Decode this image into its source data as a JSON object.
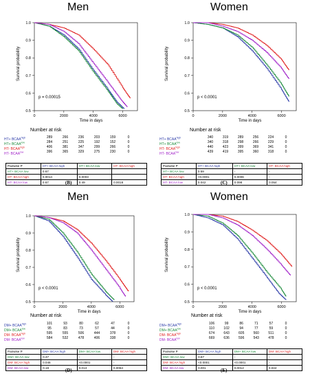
{
  "colors": {
    "blue": "#2b3aa8",
    "green": "#1a8a3a",
    "red": "#e02020",
    "purple": "#a020c8"
  },
  "chart_data": [
    {
      "panel": "B",
      "type": "line",
      "title": "Men",
      "ylabel": "Survival probability",
      "xlabel": "Time in days",
      "xlim": [
        0,
        7000
      ],
      "ylim": [
        0.5,
        1.0
      ],
      "xticks": [
        0,
        2000,
        4000,
        6000
      ],
      "yticks": [
        0.5,
        0.6,
        0.7,
        0.8,
        0.9,
        1.0
      ],
      "xtick_labels": [
        "0",
        "2000",
        "4000",
        "6000"
      ],
      "ytick_labels": [
        "0.5",
        "0.6",
        "0.7",
        "0.8",
        "0.9",
        "1.0"
      ],
      "pvalue": "p = 0.00015",
      "series": [
        {
          "name": "HT+ BCAA high",
          "color": "blue",
          "x": [
            0,
            1000,
            2000,
            3000,
            4000,
            5000,
            5600,
            6100
          ],
          "y": [
            1.0,
            0.98,
            0.93,
            0.85,
            0.73,
            0.62,
            0.55,
            0.51
          ]
        },
        {
          "name": "HT+ BCAA low",
          "color": "green",
          "x": [
            0,
            1000,
            2000,
            3000,
            4000,
            5000,
            5600,
            6000
          ],
          "y": [
            1.0,
            0.98,
            0.92,
            0.84,
            0.72,
            0.61,
            0.54,
            0.51
          ]
        },
        {
          "name": "HT- BCAA high",
          "color": "red",
          "x": [
            0,
            1000,
            2000,
            3000,
            4000,
            5000,
            6000,
            6500
          ],
          "y": [
            1.0,
            0.99,
            0.97,
            0.93,
            0.85,
            0.76,
            0.63,
            0.57
          ]
        },
        {
          "name": "HT- BCAA low",
          "color": "purple",
          "x": [
            0,
            1000,
            2000,
            3000,
            4000,
            5000,
            5800,
            6300
          ],
          "y": [
            1.0,
            0.99,
            0.95,
            0.88,
            0.77,
            0.66,
            0.57,
            0.52
          ]
        }
      ],
      "risk_title": "Number at risk",
      "risk": [
        {
          "label": "HT+ BCAA",
          "sup": "high",
          "color": "blue",
          "values": [
            "289",
            "266",
            "236",
            "203",
            "159",
            "0"
          ]
        },
        {
          "label": "HT+ BCAA",
          "sup": "low",
          "color": "green",
          "values": [
            "284",
            "251",
            "225",
            "192",
            "152",
            "0"
          ]
        },
        {
          "label": "HT- BCAA",
          "sup": "high",
          "color": "red",
          "values": [
            "406",
            "381",
            "347",
            "299",
            "266",
            "0"
          ]
        },
        {
          "label": "HT- BCAA",
          "sup": "low",
          "color": "purple",
          "values": [
            "396",
            "365",
            "329",
            "275",
            "230",
            "0"
          ]
        }
      ],
      "ptable": {
        "header": [
          "Pairwise P",
          "HT+ BCAA high",
          "HT+ BCAA low",
          "HT- BCAA high"
        ],
        "rows": [
          [
            "HT+ BCAA low",
            "0.67",
            "",
            ""
          ],
          [
            "HT- BCAA high",
            "0.0014",
            "0.0003",
            ""
          ],
          [
            "HT- BCAA low",
            "0.67",
            "0.49",
            "0.0018"
          ]
        ]
      },
      "panel_label": "(B)"
    },
    {
      "panel": "C",
      "type": "line",
      "title": "Women",
      "ylabel": "Survival probability",
      "xlabel": "Time in days",
      "xlim": [
        0,
        7000
      ],
      "ylim": [
        0.5,
        1.0
      ],
      "xticks": [
        0,
        2000,
        4000,
        6000
      ],
      "yticks": [
        0.5,
        0.6,
        0.7,
        0.8,
        0.9,
        1.0
      ],
      "xtick_labels": [
        "0",
        "2000",
        "4000",
        "6000"
      ],
      "ytick_labels": [
        "0.5",
        "0.6",
        "0.7",
        "0.8",
        "0.9",
        "1.0"
      ],
      "pvalue": "p < 0.0001",
      "series": [
        {
          "name": "HT+ BCAA high",
          "color": "blue",
          "x": [
            0,
            1000,
            2000,
            3000,
            4000,
            5000,
            6000,
            6500
          ],
          "y": [
            1.0,
            0.99,
            0.97,
            0.92,
            0.84,
            0.74,
            0.62,
            0.55
          ]
        },
        {
          "name": "HT+ BCAA low",
          "color": "green",
          "x": [
            0,
            1000,
            2000,
            3000,
            4000,
            5000,
            6000,
            6500
          ],
          "y": [
            1.0,
            0.99,
            0.97,
            0.93,
            0.86,
            0.76,
            0.65,
            0.58
          ]
        },
        {
          "name": "HT- BCAA high",
          "color": "red",
          "x": [
            0,
            1000,
            2000,
            3000,
            4000,
            5000,
            6000,
            6500
          ],
          "y": [
            1.0,
            1.0,
            0.99,
            0.97,
            0.93,
            0.87,
            0.79,
            0.73
          ]
        },
        {
          "name": "HT- BCAA low",
          "color": "purple",
          "x": [
            0,
            1000,
            2000,
            3000,
            4000,
            5000,
            6000,
            6500
          ],
          "y": [
            1.0,
            1.0,
            0.98,
            0.95,
            0.9,
            0.83,
            0.74,
            0.68
          ]
        }
      ],
      "risk_title": "Number at risk",
      "risk": [
        {
          "label": "HT+ BCAA",
          "sup": "high",
          "color": "blue",
          "values": [
            "340",
            "319",
            "289",
            "256",
            "224",
            "0"
          ]
        },
        {
          "label": "HT+ BCAA",
          "sup": "low",
          "color": "green",
          "values": [
            "340",
            "318",
            "298",
            "266",
            "229",
            "0"
          ]
        },
        {
          "label": "HT- BCAA",
          "sup": "high",
          "color": "red",
          "values": [
            "440",
            "423",
            "399",
            "369",
            "341",
            "0"
          ]
        },
        {
          "label": "HT- BCAA",
          "sup": "low",
          "color": "purple",
          "values": [
            "439",
            "419",
            "395",
            "360",
            "318",
            "0"
          ]
        }
      ],
      "ptable": {
        "header": [
          "Pairwise P",
          "HT+ BCAA high",
          "HT+ BCAA low",
          "HT- BCAA high"
        ],
        "rows": [
          [
            "HT+ BCAA low",
            "0.59",
            "-",
            "-"
          ],
          [
            "HT- BCAA high",
            "<0.0001",
            "0.0006",
            "-"
          ],
          [
            "HT- BCAA low",
            "0.042",
            "0.098",
            "0.054"
          ]
        ]
      },
      "panel_label": "(C)"
    },
    {
      "panel": "D",
      "type": "line",
      "title": "Men",
      "ylabel": "Survival probability",
      "xlabel": "Time in days",
      "xlim": [
        0,
        7000
      ],
      "ylim": [
        0.5,
        1.0
      ],
      "xticks": [
        0,
        2000,
        4000,
        6000
      ],
      "yticks": [
        0.5,
        0.6,
        0.7,
        0.8,
        0.9,
        1.0
      ],
      "xtick_labels": [
        "0",
        "2000",
        "4000",
        "6000"
      ],
      "ytick_labels": [
        "0.5",
        "0.6",
        "0.7",
        "0.8",
        "0.9",
        "1.0"
      ],
      "pvalue": "p < 0.0001",
      "series": [
        {
          "name": "DM+ BCAA high",
          "color": "blue",
          "x": [
            0,
            1000,
            2000,
            3000,
            4000,
            5000,
            5500
          ],
          "y": [
            1.0,
            0.97,
            0.88,
            0.76,
            0.63,
            0.54,
            0.5
          ]
        },
        {
          "name": "DM+ BCAA low",
          "color": "green",
          "x": [
            0,
            1000,
            2000,
            3000,
            4000,
            5000,
            5600
          ],
          "y": [
            1.0,
            0.98,
            0.9,
            0.79,
            0.66,
            0.56,
            0.51
          ]
        },
        {
          "name": "DM- BCAA high",
          "color": "red",
          "x": [
            0,
            1000,
            2000,
            3000,
            4000,
            5000,
            6000,
            6600
          ],
          "y": [
            1.0,
            0.99,
            0.97,
            0.92,
            0.84,
            0.74,
            0.63,
            0.56
          ]
        },
        {
          "name": "DM- BCAA low",
          "color": "purple",
          "x": [
            0,
            1000,
            2000,
            3000,
            4000,
            5000,
            6000,
            6400
          ],
          "y": [
            1.0,
            0.99,
            0.96,
            0.9,
            0.8,
            0.69,
            0.58,
            0.53
          ]
        }
      ],
      "risk_title": "Number at risk",
      "risk": [
        {
          "label": "DM+ BCAA",
          "sup": "high",
          "color": "blue",
          "values": [
            "101",
            "93",
            "80",
            "62",
            "47",
            "0"
          ]
        },
        {
          "label": "DM+ BCAA",
          "sup": "low",
          "color": "green",
          "values": [
            "95",
            "83",
            "73",
            "57",
            "44",
            "0"
          ]
        },
        {
          "label": "DM- BCAA",
          "sup": "high",
          "color": "red",
          "values": [
            "595",
            "555",
            "506",
            "444",
            "378",
            "0"
          ]
        },
        {
          "label": "DM- BCAA",
          "sup": "low",
          "color": "purple",
          "values": [
            "584",
            "532",
            "478",
            "406",
            "338",
            "0"
          ]
        }
      ],
      "ptable": {
        "header": [
          "Pairwise P",
          "DM+ BCAA high",
          "DM+ BCAA low",
          "DM- BCAA high"
        ],
        "rows": [
          [
            "DM+ BCAA low",
            "0.37",
            "-",
            "-"
          ],
          [
            "DM- BCAA high",
            "0.046",
            "<0.0001",
            "-"
          ],
          [
            "DM- BCAA low",
            "0.18",
            "0.013",
            "0.0064"
          ]
        ]
      },
      "panel_label": "(D)"
    },
    {
      "panel": "E",
      "type": "line",
      "title": "Women",
      "ylabel": "Survival probability",
      "xlabel": "Time in days",
      "xlim": [
        0,
        7000
      ],
      "ylim": [
        0.5,
        1.0
      ],
      "xticks": [
        0,
        2000,
        4000,
        6000
      ],
      "yticks": [
        0.5,
        0.6,
        0.7,
        0.8,
        0.9,
        1.0
      ],
      "xtick_labels": [
        "0",
        "2000",
        "4000",
        "6000"
      ],
      "ytick_labels": [
        "0.5",
        "0.6",
        "0.7",
        "0.8",
        "0.9",
        "1.0"
      ],
      "pvalue": "p < 0.0001",
      "series": [
        {
          "name": "DM+ BCAA high",
          "color": "blue",
          "x": [
            0,
            1000,
            2000,
            3000,
            4000,
            5000,
            5800,
            6300
          ],
          "y": [
            1.0,
            0.98,
            0.94,
            0.86,
            0.75,
            0.64,
            0.55,
            0.51
          ]
        },
        {
          "name": "DM+ BCAA low",
          "color": "green",
          "x": [
            0,
            1000,
            2000,
            3000,
            4000,
            5000,
            6000,
            6300
          ],
          "y": [
            1.0,
            0.99,
            0.95,
            0.88,
            0.78,
            0.67,
            0.57,
            0.53
          ]
        },
        {
          "name": "DM- BCAA high",
          "color": "red",
          "x": [
            0,
            1000,
            2000,
            3000,
            4000,
            5000,
            6000,
            6700
          ],
          "y": [
            1.0,
            1.0,
            0.99,
            0.96,
            0.91,
            0.85,
            0.77,
            0.7
          ]
        },
        {
          "name": "DM- BCAA low",
          "color": "purple",
          "x": [
            0,
            1000,
            2000,
            3000,
            4000,
            5000,
            6000,
            6600
          ],
          "y": [
            1.0,
            1.0,
            0.98,
            0.94,
            0.88,
            0.8,
            0.71,
            0.65
          ]
        }
      ],
      "risk_title": "Number at risk",
      "risk": [
        {
          "label": "DM+ BCAA",
          "sup": "high",
          "color": "blue",
          "values": [
            "106",
            "99",
            "86",
            "71",
            "57",
            "0"
          ]
        },
        {
          "label": "DM+ BCAA",
          "sup": "low",
          "color": "green",
          "values": [
            "110",
            "102",
            "94",
            "77",
            "59",
            "0"
          ]
        },
        {
          "label": "DM- BCAA",
          "sup": "high",
          "color": "red",
          "values": [
            "674",
            "643",
            "605",
            "560",
            "511",
            "0"
          ]
        },
        {
          "label": "DM- BCAA",
          "sup": "low",
          "color": "purple",
          "values": [
            "669",
            "636",
            "596",
            "543",
            "478",
            "0"
          ]
        }
      ],
      "ptable": {
        "header": [
          "Pairwise P",
          "DM+ BCAA high",
          "DM+ BCAA low",
          "DM- BCAA high"
        ],
        "rows": [
          [
            "DM+ BCAA low",
            "0.87",
            "-",
            "-"
          ],
          [
            "DM- BCAA high",
            "<0.0001",
            "<0.0001",
            "-"
          ],
          [
            "DM- BCAA low",
            "0.001",
            "0.0012",
            "0.042"
          ]
        ]
      },
      "panel_label": "(E)"
    }
  ]
}
